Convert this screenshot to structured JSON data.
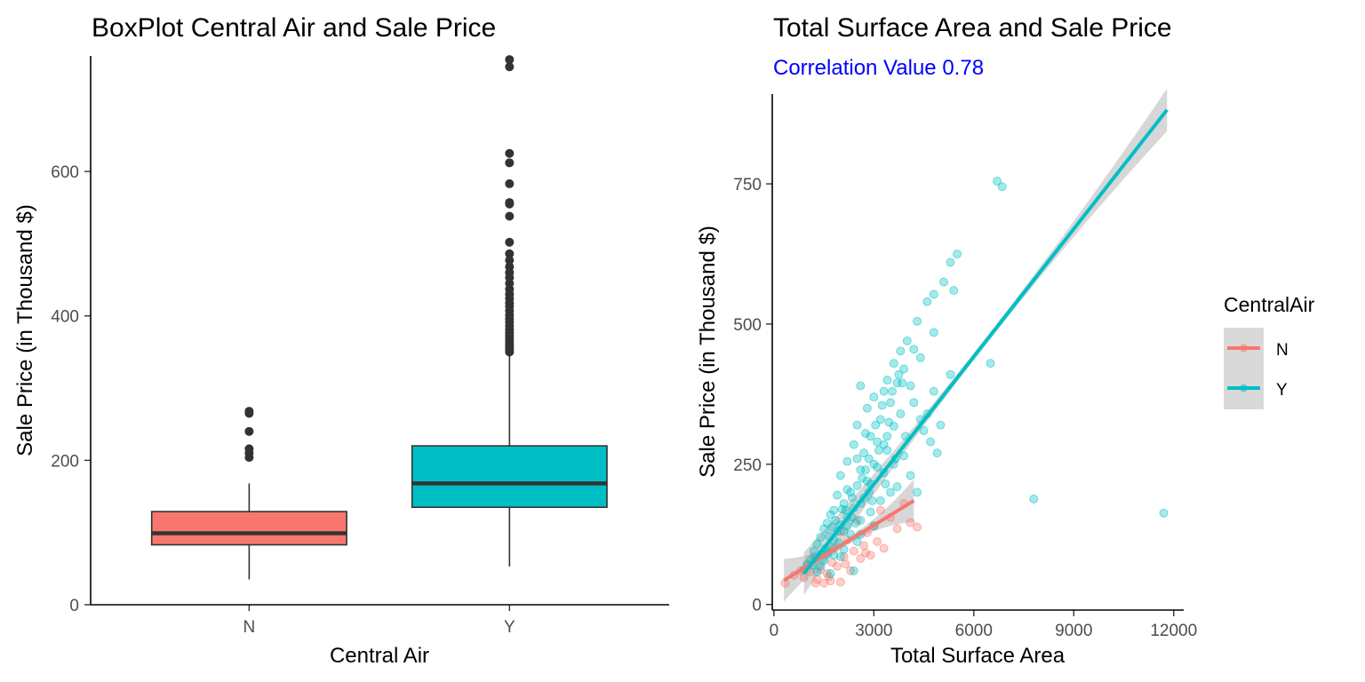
{
  "chart_data": [
    {
      "type": "box",
      "title": "BoxPlot Central Air and Sale Price",
      "xlabel": "Central Air",
      "ylabel": "Sale Price (in Thousand $)",
      "categories": [
        "N",
        "Y"
      ],
      "ylim": [
        0,
        760
      ],
      "yticks": [
        0,
        200,
        400,
        600
      ],
      "grid": false,
      "boxes": [
        {
          "category": "N",
          "color": "#F8766D",
          "min": 35,
          "q1": 83,
          "median": 99,
          "q3": 129,
          "max": 168,
          "outliers": [
            204,
            210,
            216,
            240,
            265,
            268
          ]
        },
        {
          "category": "Y",
          "color": "#00BFC4",
          "min": 53,
          "q1": 135,
          "median": 168,
          "q3": 220,
          "max": 348,
          "outliers": [
            350,
            353,
            356,
            359,
            362,
            365,
            369,
            373,
            377,
            381,
            386,
            391,
            396,
            401,
            407,
            413,
            418,
            424,
            430,
            437,
            445,
            453,
            460,
            468,
            477,
            486,
            502,
            538,
            555,
            557,
            583,
            612,
            625,
            745,
            755
          ]
        }
      ]
    },
    {
      "type": "scatter",
      "title": "Total Surface Area and Sale Price",
      "subtitle": "Correlation Value 0.78",
      "subtitle_color": "#0000FF",
      "xlabel": "Total Surface Area",
      "ylabel": "Sale Price (in Thousand $)",
      "xlim": [
        -50,
        12300
      ],
      "ylim": [
        -10,
        910
      ],
      "xticks": [
        0,
        3000,
        6000,
        9000,
        12000
      ],
      "yticks": [
        0,
        250,
        500,
        750
      ],
      "grid": false,
      "legend": {
        "title": "CentralAir",
        "position": "right",
        "entries": [
          "N",
          "Y"
        ]
      },
      "series": [
        {
          "name": "N",
          "color": "#F8766D",
          "fit": {
            "x": [
              300,
              4200
            ],
            "y": [
              43,
              185
            ]
          },
          "points": [
            [
              334,
              38
            ],
            [
              600,
              52
            ],
            [
              800,
              60
            ],
            [
              900,
              48
            ],
            [
              1000,
              70
            ],
            [
              1100,
              58
            ],
            [
              1200,
              85
            ],
            [
              1300,
              45
            ],
            [
              1400,
              62
            ],
            [
              1500,
              38
            ],
            [
              1550,
              92
            ],
            [
              1600,
              55
            ],
            [
              1700,
              42
            ],
            [
              1750,
              75
            ],
            [
              1800,
              100
            ],
            [
              1900,
              68
            ],
            [
              2000,
              130
            ],
            [
              2000,
              40
            ],
            [
              2100,
              85
            ],
            [
              2200,
              115
            ],
            [
              2300,
              60
            ],
            [
              2400,
              95
            ],
            [
              2500,
              150
            ],
            [
              2600,
              82
            ],
            [
              2700,
              105
            ],
            [
              2800,
              128
            ],
            [
              2900,
              88
            ],
            [
              3000,
              140
            ],
            [
              3100,
              112
            ],
            [
              3200,
              168
            ],
            [
              3300,
              100
            ],
            [
              3500,
              155
            ],
            [
              3700,
              135
            ],
            [
              3900,
              180
            ],
            [
              4100,
              146
            ],
            [
              4300,
              138
            ],
            [
              1250,
              38
            ],
            [
              1650,
              50
            ],
            [
              2150,
              72
            ],
            [
              2750,
              92
            ]
          ]
        },
        {
          "name": "Y",
          "color": "#00BFC4",
          "fit": {
            "x": [
              900,
              11800
            ],
            "y": [
              55,
              882
            ]
          },
          "points": [
            [
              6700,
              755
            ],
            [
              6850,
              745
            ],
            [
              5500,
              625
            ],
            [
              5300,
              610
            ],
            [
              5100,
              575
            ],
            [
              5400,
              560
            ],
            [
              4800,
              553
            ],
            [
              4600,
              540
            ],
            [
              4300,
              505
            ],
            [
              4800,
              485
            ],
            [
              4000,
              470
            ],
            [
              4200,
              455
            ],
            [
              3800,
              452
            ],
            [
              4400,
              440
            ],
            [
              3600,
              430
            ],
            [
              3900,
              420
            ],
            [
              6500,
              430
            ],
            [
              5300,
              410
            ],
            [
              3400,
              400
            ],
            [
              3700,
              395
            ],
            [
              4100,
              390
            ],
            [
              2600,
              390
            ],
            [
              3300,
              380
            ],
            [
              3000,
              370
            ],
            [
              3500,
              360
            ],
            [
              2800,
              350
            ],
            [
              4600,
              340
            ],
            [
              3200,
              330
            ],
            [
              2500,
              320
            ],
            [
              3600,
              318
            ],
            [
              2900,
              300
            ],
            [
              4700,
              290
            ],
            [
              3100,
              290
            ],
            [
              2400,
              285
            ],
            [
              3400,
              275
            ],
            [
              2700,
              270
            ],
            [
              3900,
              265
            ],
            [
              2200,
              255
            ],
            [
              3000,
              250
            ],
            [
              2600,
              240
            ],
            [
              3300,
              235
            ],
            [
              2000,
              230
            ],
            [
              2800,
              220
            ],
            [
              2500,
              212
            ],
            [
              3700,
              210
            ],
            [
              4300,
              200
            ],
            [
              2300,
              200
            ],
            [
              1900,
              195
            ],
            [
              2700,
              190
            ],
            [
              3200,
              185
            ],
            [
              2100,
              180
            ],
            [
              2400,
              172
            ],
            [
              1800,
              168
            ],
            [
              2900,
              165
            ],
            [
              1700,
              160
            ],
            [
              2200,
              155
            ],
            [
              2600,
              150
            ],
            [
              1600,
              145
            ],
            [
              2000,
              142
            ],
            [
              3000,
              140
            ],
            [
              1500,
              135
            ],
            [
              1900,
              130
            ],
            [
              2300,
              125
            ],
            [
              1400,
              120
            ],
            [
              1800,
              115
            ],
            [
              2500,
              112
            ],
            [
              1300,
              108
            ],
            [
              1700,
              102
            ],
            [
              2100,
              98
            ],
            [
              1200,
              95
            ],
            [
              1600,
              90
            ],
            [
              2000,
              85
            ],
            [
              1100,
              80
            ],
            [
              1500,
              78
            ],
            [
              1000,
              72
            ],
            [
              1400,
              68
            ],
            [
              900,
              62
            ],
            [
              1300,
              58
            ],
            [
              1700,
              55
            ],
            [
              2400,
              60
            ],
            [
              2100,
              130
            ],
            [
              2600,
              180
            ],
            [
              2900,
              215
            ],
            [
              3100,
              245
            ],
            [
              3400,
              300
            ],
            [
              3800,
              340
            ],
            [
              2200,
              205
            ],
            [
              2500,
              260
            ],
            [
              2750,
              305
            ],
            [
              3050,
              320
            ],
            [
              3250,
              355
            ],
            [
              3550,
              380
            ],
            [
              3750,
              410
            ],
            [
              1850,
              150
            ],
            [
              2050,
              170
            ],
            [
              2350,
              190
            ],
            [
              2650,
              225
            ],
            [
              2850,
              260
            ],
            [
              3150,
              275
            ],
            [
              3450,
              325
            ],
            [
              7800,
              188
            ],
            [
              11700,
              163
            ],
            [
              5000,
              320
            ],
            [
              4500,
              310
            ],
            [
              4200,
              360
            ],
            [
              3950,
              300
            ],
            [
              3650,
              260
            ],
            [
              3350,
              215
            ],
            [
              2950,
              185
            ],
            [
              2450,
              145
            ],
            [
              1950,
              110
            ],
            [
              1550,
              100
            ],
            [
              1250,
              82
            ],
            [
              4800,
              380
            ],
            [
              4400,
              330
            ],
            [
              2750,
              240
            ],
            [
              2150,
              168
            ],
            [
              1650,
              122
            ],
            [
              3850,
              395
            ],
            [
              3600,
              250
            ],
            [
              3300,
              285
            ],
            [
              2850,
              200
            ],
            [
              2350,
              155
            ],
            [
              1750,
              138
            ],
            [
              1450,
              92
            ],
            [
              1150,
              70
            ],
            [
              4900,
              270
            ],
            [
              4100,
              230
            ],
            [
              3500,
              200
            ],
            [
              2600,
              125
            ],
            [
              2200,
              140
            ],
            [
              1800,
              88
            ]
          ]
        }
      ]
    }
  ]
}
